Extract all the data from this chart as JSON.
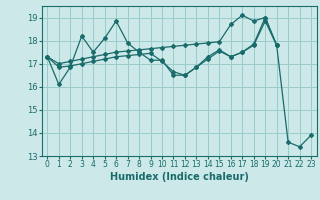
{
  "xlabel": "Humidex (Indice chaleur)",
  "xlim": [
    -0.5,
    23.5
  ],
  "ylim": [
    13,
    19.5
  ],
  "yticks": [
    13,
    14,
    15,
    16,
    17,
    18,
    19
  ],
  "xticks": [
    0,
    1,
    2,
    3,
    4,
    5,
    6,
    7,
    8,
    9,
    10,
    11,
    12,
    13,
    14,
    15,
    16,
    17,
    18,
    19,
    20,
    21,
    22,
    23
  ],
  "bg_color": "#cce8e8",
  "grid_color": "#99cccc",
  "line_color": "#1a6b6b",
  "lines": [
    {
      "x": [
        0,
        1,
        2,
        3,
        4,
        5,
        6,
        7,
        8,
        9,
        10,
        11,
        12,
        13,
        14,
        15,
        16,
        17,
        18,
        19,
        20
      ],
      "y": [
        17.3,
        16.1,
        16.85,
        18.2,
        17.5,
        18.1,
        18.85,
        17.9,
        17.5,
        17.15,
        17.15,
        16.5,
        16.5,
        16.85,
        17.3,
        17.6,
        17.3,
        17.5,
        17.85,
        19.0,
        17.8
      ]
    },
    {
      "x": [
        0,
        1,
        2,
        3,
        4,
        5,
        6,
        7,
        8,
        9,
        10,
        11,
        12,
        13,
        14,
        15,
        16,
        17,
        18,
        19,
        20,
        21,
        22,
        23
      ],
      "y": [
        17.3,
        17.0,
        17.1,
        17.2,
        17.3,
        17.4,
        17.5,
        17.55,
        17.6,
        17.65,
        17.7,
        17.75,
        17.8,
        17.85,
        17.9,
        17.95,
        18.7,
        19.1,
        18.85,
        19.0,
        17.8,
        13.6,
        13.4,
        13.9
      ]
    },
    {
      "x": [
        0,
        1,
        2,
        3,
        4,
        5,
        6,
        7,
        8,
        9,
        10,
        11,
        12,
        13,
        14,
        15,
        16,
        17,
        18,
        19,
        20
      ],
      "y": [
        17.3,
        16.85,
        16.9,
        17.0,
        17.1,
        17.2,
        17.3,
        17.35,
        17.4,
        17.45,
        17.1,
        16.65,
        16.5,
        16.85,
        17.2,
        17.55,
        17.3,
        17.5,
        17.8,
        18.85,
        17.8
      ]
    }
  ]
}
